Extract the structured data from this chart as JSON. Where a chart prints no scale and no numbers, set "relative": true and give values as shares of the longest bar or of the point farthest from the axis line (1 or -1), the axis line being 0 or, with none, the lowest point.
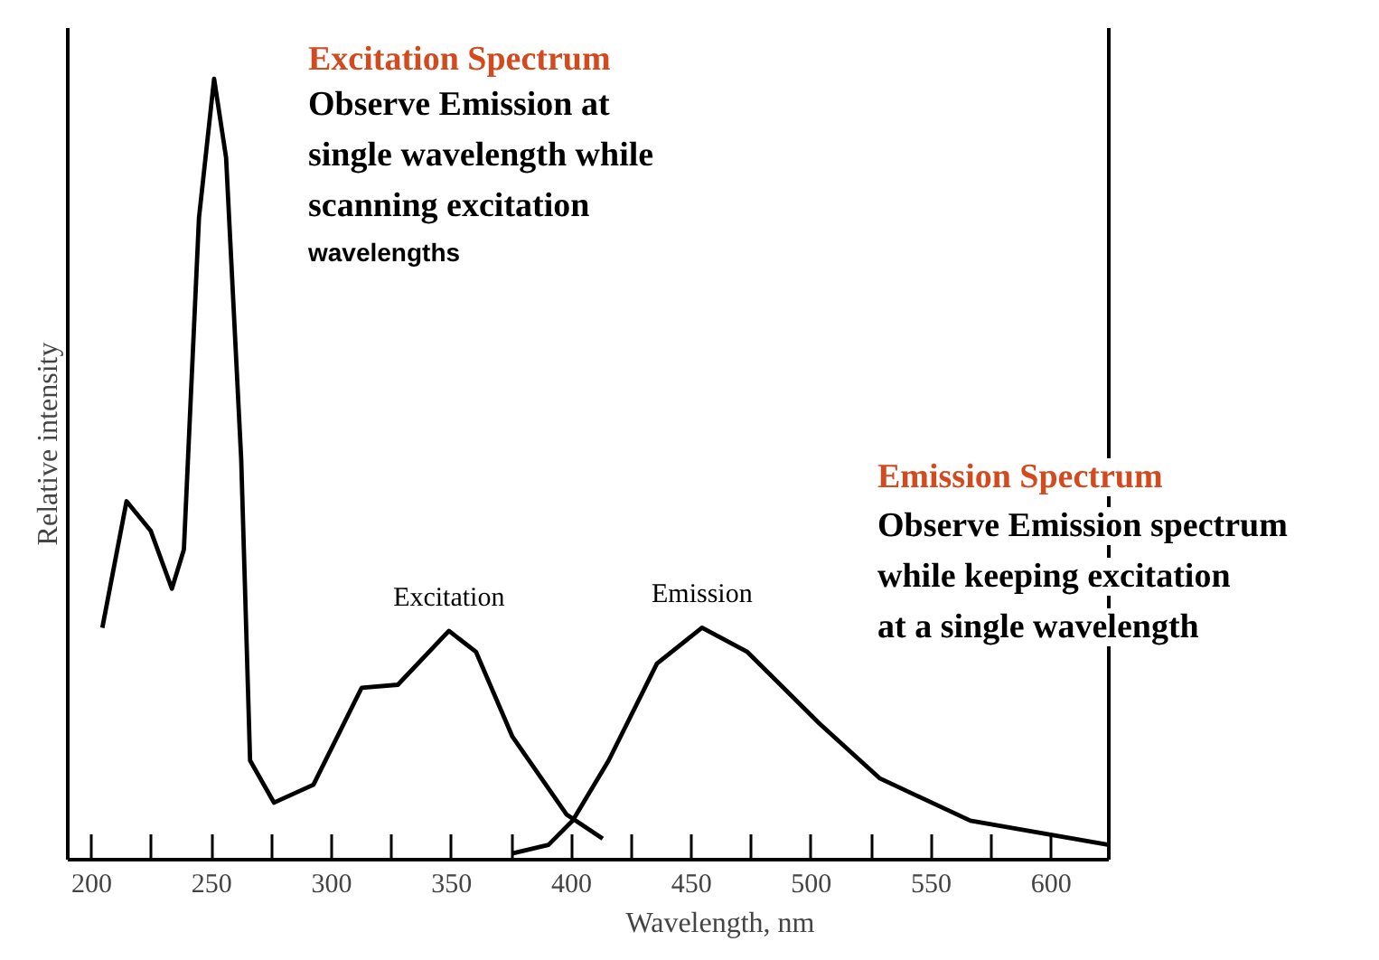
{
  "chart_data": {
    "type": "line",
    "relative": true,
    "xlabel": "Wavelength, nm",
    "ylabel": "Relative intensity",
    "xlim": [
      190,
      624
    ],
    "xticks": [
      200,
      {
        "value": 225,
        "label": null
      },
      250,
      {
        "value": 275,
        "label": null
      },
      300,
      {
        "value": 325,
        "label": null
      },
      350,
      {
        "value": 375,
        "label": null
      },
      400,
      {
        "value": 425,
        "label": null
      },
      450,
      {
        "value": 475,
        "label": null
      },
      500,
      {
        "value": 525,
        "label": null
      },
      550,
      {
        "value": 575,
        "label": null
      },
      600
    ],
    "grid": false,
    "marker": "none",
    "line_style": "solid",
    "series": [
      {
        "name": "Excitation",
        "color": "#000000",
        "x": [
          204.4,
          214.5,
          224.6,
          233.4,
          238.4,
          244.7,
          251,
          256,
          262.3,
          266,
          276,
          292.4,
          312.5,
          327.6,
          348.9,
          360.2,
          375.3,
          397.9,
          413
        ],
        "values": [
          0.297,
          0.459,
          0.421,
          0.347,
          0.397,
          0.822,
          1.0,
          0.899,
          0.513,
          0.127,
          0.073,
          0.096,
          0.22,
          0.224,
          0.293,
          0.266,
          0.158,
          0.058,
          0.027
        ]
      },
      {
        "name": "Emission",
        "color": "#000000",
        "x": [
          375.3,
          390.4,
          400.5,
          415.5,
          435.6,
          454.4,
          473.3,
          503.5,
          528.6,
          566.3,
          624
        ],
        "values": [
          0.008,
          0.019,
          0.05,
          0.127,
          0.251,
          0.297,
          0.266,
          0.174,
          0.104,
          0.05,
          0.019
        ]
      }
    ],
    "annotations": [
      "Excitation Spectrum",
      "Observe Emission at",
      "single wavelength while",
      "scanning excitation",
      "wavelengths",
      "Emission Spectrum",
      "Observe Emission spectrum",
      "while keeping excitation",
      "at a single wavelength"
    ]
  }
}
